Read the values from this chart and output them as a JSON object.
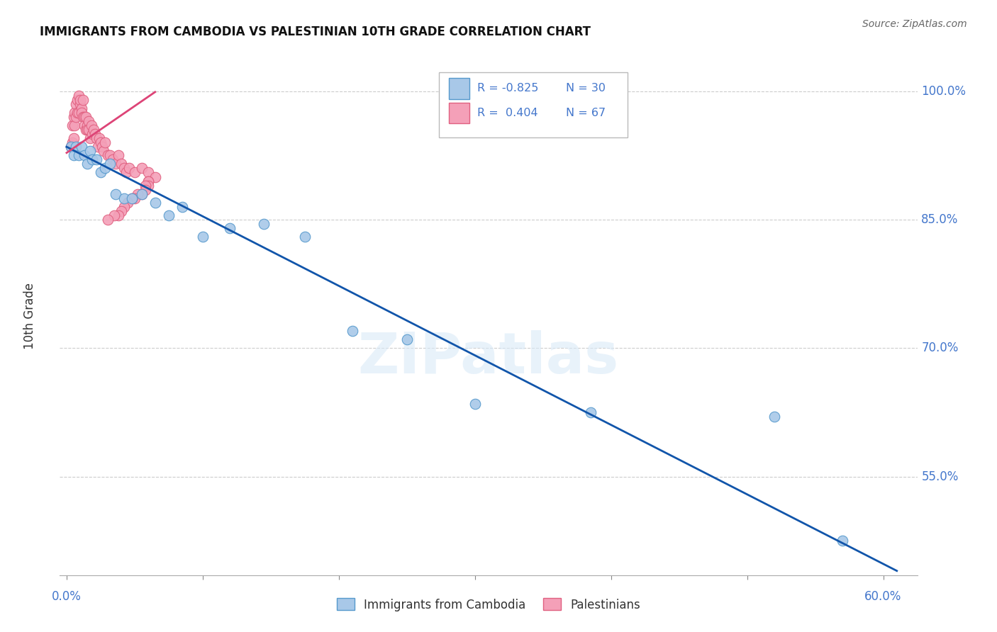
{
  "title": "IMMIGRANTS FROM CAMBODIA VS PALESTINIAN 10TH GRADE CORRELATION CHART",
  "source": "Source: ZipAtlas.com",
  "ylabel": "10th Grade",
  "y_ticks": [
    1.0,
    0.85,
    0.7,
    0.55
  ],
  "y_tick_labels": [
    "100.0%",
    "85.0%",
    "70.0%",
    "55.0%"
  ],
  "x_ticks": [
    0.0,
    0.1,
    0.2,
    0.3,
    0.4,
    0.5,
    0.6
  ],
  "xlim": [
    -0.005,
    0.625
  ],
  "ylim": [
    0.435,
    1.04
  ],
  "watermark": "ZIPatlas",
  "legend_r1": "R = -0.825",
  "legend_n1": "N = 30",
  "legend_r2": "R =  0.404",
  "legend_n2": "N = 67",
  "cambodia_color": "#a8c8e8",
  "cambodia_edge": "#5599cc",
  "palestinians_color": "#f4a0b8",
  "palestinians_edge": "#e06080",
  "trendline_cambodia": "#1155aa",
  "trendline_palestinians": "#dd4477",
  "cambodia_x": [
    0.003,
    0.005,
    0.007,
    0.009,
    0.011,
    0.013,
    0.015,
    0.017,
    0.019,
    0.022,
    0.025,
    0.028,
    0.032,
    0.036,
    0.042,
    0.048,
    0.055,
    0.065,
    0.075,
    0.085,
    0.1,
    0.12,
    0.145,
    0.175,
    0.21,
    0.25,
    0.3,
    0.385,
    0.52,
    0.57
  ],
  "cambodia_y": [
    0.935,
    0.925,
    0.935,
    0.925,
    0.935,
    0.925,
    0.915,
    0.93,
    0.92,
    0.92,
    0.905,
    0.91,
    0.915,
    0.88,
    0.875,
    0.875,
    0.88,
    0.87,
    0.855,
    0.865,
    0.83,
    0.84,
    0.845,
    0.83,
    0.72,
    0.71,
    0.635,
    0.625,
    0.62,
    0.475
  ],
  "palestinians_x": [
    0.003,
    0.004,
    0.004,
    0.005,
    0.005,
    0.006,
    0.006,
    0.007,
    0.007,
    0.008,
    0.008,
    0.009,
    0.009,
    0.01,
    0.01,
    0.011,
    0.011,
    0.012,
    0.012,
    0.013,
    0.013,
    0.014,
    0.014,
    0.015,
    0.015,
    0.016,
    0.016,
    0.017,
    0.018,
    0.019,
    0.02,
    0.021,
    0.022,
    0.023,
    0.024,
    0.025,
    0.026,
    0.027,
    0.028,
    0.03,
    0.032,
    0.034,
    0.036,
    0.038,
    0.04,
    0.042,
    0.044,
    0.046,
    0.05,
    0.055,
    0.06,
    0.065,
    0.06,
    0.06,
    0.06,
    0.058,
    0.058,
    0.055,
    0.052,
    0.05,
    0.048,
    0.045,
    0.042,
    0.04,
    0.038,
    0.035,
    0.03
  ],
  "palestinians_y": [
    0.935,
    0.94,
    0.96,
    0.945,
    0.97,
    0.96,
    0.975,
    0.97,
    0.985,
    0.975,
    0.99,
    0.975,
    0.995,
    0.985,
    0.99,
    0.98,
    0.975,
    0.97,
    0.99,
    0.97,
    0.96,
    0.955,
    0.97,
    0.96,
    0.955,
    0.965,
    0.955,
    0.945,
    0.96,
    0.95,
    0.955,
    0.95,
    0.945,
    0.935,
    0.945,
    0.94,
    0.935,
    0.93,
    0.94,
    0.925,
    0.925,
    0.92,
    0.915,
    0.925,
    0.915,
    0.91,
    0.905,
    0.91,
    0.905,
    0.91,
    0.905,
    0.9,
    0.895,
    0.895,
    0.89,
    0.89,
    0.885,
    0.88,
    0.88,
    0.875,
    0.875,
    0.87,
    0.865,
    0.86,
    0.855,
    0.855,
    0.85
  ],
  "grid_color": "#cccccc",
  "title_fontsize": 12,
  "axis_label_color": "#4477cc",
  "right_label_color": "#4477cc",
  "trendline_cam_x0": 0.0,
  "trendline_cam_x1": 0.61,
  "trendline_cam_y0": 0.935,
  "trendline_cam_y1": 0.44,
  "trendline_pal_x0": 0.0,
  "trendline_pal_x1": 0.065,
  "trendline_pal_y0": 0.928,
  "trendline_pal_y1": 0.999
}
